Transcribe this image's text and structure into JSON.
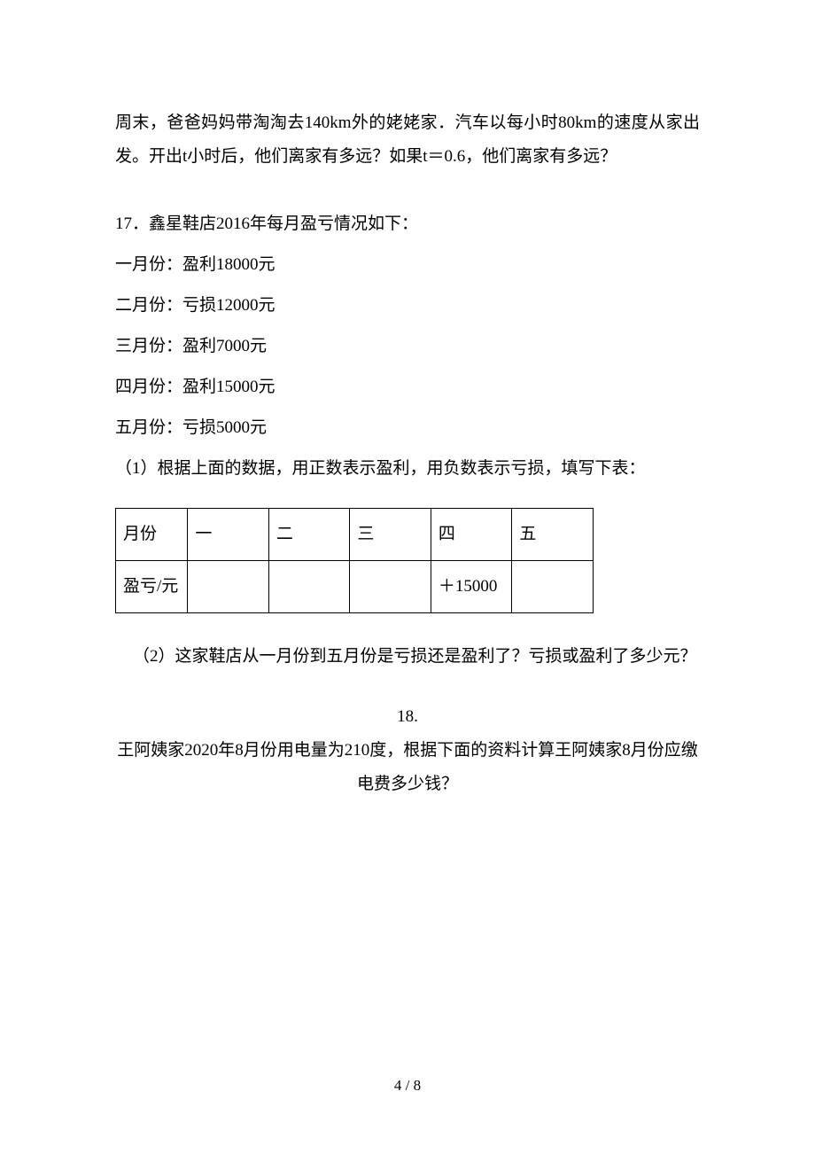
{
  "q16": {
    "text": "周末，爸爸妈妈带淘淘去140km外的姥姥家．汽车以每小时80km的速度从家出发。开出t小时后，他们离家有多远？如果t＝0.6，他们离家有多远？"
  },
  "q17": {
    "title": "17．鑫星鞋店2016年每月盈亏情况如下：",
    "months": [
      "一月份：盈利18000元",
      "二月份：亏损12000元",
      "三月份：盈利7000元",
      "四月份：盈利15000元",
      "五月份：亏损5000元"
    ],
    "part1": "（1）根据上面的数据，用正数表示盈利，用负数表示亏损，填写下表：",
    "table": {
      "row1_label": "月份",
      "row1_cols": [
        "一",
        "二",
        "三",
        "四",
        "五"
      ],
      "row2_label": "盈亏/元",
      "row2_cols": [
        "",
        "",
        "",
        "＋15000",
        ""
      ]
    },
    "part2": "（2）这家鞋店从一月份到五月份是亏损还是盈利了？亏损或盈利了多少元？"
  },
  "q18": {
    "num": "18.",
    "line1": "王阿姨家2020年8月份用电量为210度，根据下面的资料计算王阿姨家8月份应缴",
    "line2": "电费多少钱？"
  },
  "pageNumber": "4 / 8",
  "colors": {
    "background": "#ffffff",
    "text": "#000000",
    "border": "#000000"
  },
  "typography": {
    "body_fontsize": 19,
    "page_number_fontsize": 17,
    "font_family": "SimSun"
  }
}
